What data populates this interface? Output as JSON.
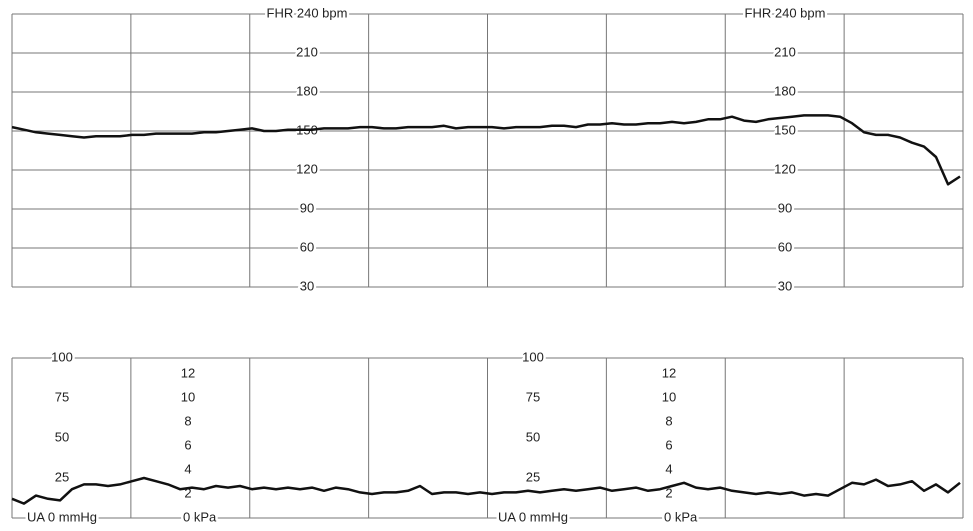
{
  "chart_data": [
    {
      "type": "line",
      "ylim": [
        30,
        240
      ],
      "yticks": [
        30,
        60,
        90,
        120,
        150,
        180,
        210,
        {
          "value": 240,
          "label": "FHR 240 bpm"
        }
      ],
      "grid": true,
      "series": [
        {
          "color": "#111111",
          "values": [
            153,
            151,
            149,
            148,
            147,
            146,
            145,
            146,
            146,
            146,
            147,
            147,
            148,
            148,
            148,
            148,
            149,
            149,
            150,
            151,
            152,
            150,
            150,
            151,
            151,
            151,
            152,
            152,
            152,
            153,
            153,
            152,
            152,
            153,
            153,
            153,
            154,
            152,
            153,
            153,
            153,
            152,
            153,
            153,
            153,
            154,
            154,
            153,
            155,
            155,
            156,
            155,
            155,
            156,
            156,
            157,
            156,
            157,
            159,
            159,
            161,
            158,
            157,
            159,
            160,
            161,
            162,
            162,
            162,
            161,
            156,
            149,
            147,
            147,
            145,
            141,
            138,
            130,
            109,
            115
          ]
        }
      ]
    },
    {
      "type": "line",
      "ylim": [
        0,
        100
      ],
      "yticks": [
        {
          "value": 0,
          "label": "UA  0  mmHg"
        },
        25,
        50,
        75,
        100
      ],
      "y2lim": [
        0,
        13.33
      ],
      "y2ticks": [
        {
          "value": 0,
          "label": "0 kPa"
        },
        2,
        4,
        6,
        8,
        10,
        12
      ],
      "grid": false,
      "series": [
        {
          "color": "#111111",
          "values": [
            12,
            9,
            14,
            12,
            11,
            18,
            21,
            21,
            20,
            21,
            23,
            25,
            23,
            21,
            18,
            19,
            18,
            20,
            19,
            20,
            18,
            19,
            18,
            19,
            18,
            19,
            17,
            19,
            18,
            16,
            15,
            16,
            16,
            17,
            20,
            15,
            16,
            16,
            15,
            16,
            15,
            16,
            16,
            17,
            16,
            17,
            18,
            17,
            18,
            19,
            17,
            18,
            19,
            17,
            18,
            20,
            22,
            19,
            18,
            19,
            17,
            16,
            15,
            16,
            15,
            16,
            14,
            15,
            14,
            18,
            22,
            21,
            24,
            20,
            21,
            23,
            17,
            21,
            16,
            22
          ]
        }
      ]
    }
  ]
}
